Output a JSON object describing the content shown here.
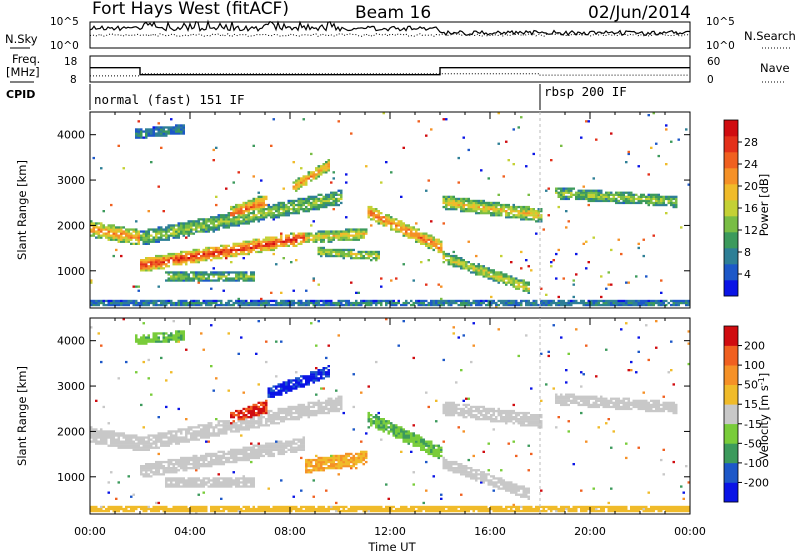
{
  "header": {
    "station": "Fort Hays West (fitACF)",
    "beam": "Beam 16",
    "date": "02/Jun/2014"
  },
  "noise_panel": {
    "left_label": "N.Sky",
    "right_label": "N.Search",
    "left_ticks": [
      "10^5",
      "10^0"
    ],
    "right_ticks": [
      "10^5",
      "10^0"
    ]
  },
  "freq_panel": {
    "left_label_1": "Freq.",
    "left_label_2": "[MHz]",
    "right_label": "Nave",
    "left_ticks": [
      "18",
      "8"
    ],
    "right_ticks": [
      "60",
      "0"
    ],
    "freq_steps": [
      {
        "t0": 0,
        "t1": 2.0,
        "value": 13.5
      },
      {
        "t0": 2.0,
        "t1": 14.0,
        "value": 10.8
      },
      {
        "t0": 14.0,
        "t1": 24.0,
        "value": 13.5
      }
    ],
    "nave_steps": [
      {
        "t0": 0,
        "t1": 2.0,
        "value": 14
      },
      {
        "t0": 2.0,
        "t1": 14.0,
        "value": 19
      },
      {
        "t0": 14.0,
        "t1": 18.0,
        "value": 19
      },
      {
        "t0": 18.0,
        "t1": 24.0,
        "value": 16
      }
    ]
  },
  "cpid": {
    "label": "CPID",
    "modes": [
      {
        "text": "normal (fast) 151 IF",
        "t_start": 0
      },
      {
        "text": "rbsp 200 IF",
        "t_start": 18.0
      }
    ]
  },
  "chart_data": [
    {
      "type": "heatmap",
      "title": "",
      "ylabel": "Slant Range [km]",
      "ylim": [
        180,
        4500
      ],
      "xlim": [
        0,
        24
      ],
      "yticks": [
        "1000",
        "2000",
        "3000",
        "4000"
      ],
      "colorbar": {
        "label": "Power [dB]",
        "ticks": [
          "4",
          "8",
          "12",
          "16",
          "20",
          "24",
          "28"
        ],
        "colors": [
          "#0a14e6",
          "#1d58c8",
          "#2e7f96",
          "#3c9a5c",
          "#79bd45",
          "#c4d135",
          "#f0bb2a",
          "#f59127",
          "#f06020",
          "#e3301a",
          "#d00c10"
        ]
      },
      "bands": [
        {
          "t0": 0.0,
          "t1": 2.0,
          "r0": 1900,
          "r1": 1700,
          "w": 350,
          "p": 0.75
        },
        {
          "t0": 2.0,
          "t1": 8.5,
          "r0": 1100,
          "r1": 1700,
          "w": 300,
          "p": 0.95
        },
        {
          "t0": 8.5,
          "t1": 11.0,
          "r0": 1700,
          "r1": 1800,
          "w": 250,
          "p": 0.6
        },
        {
          "t0": 2.0,
          "t1": 10.0,
          "r0": 1700,
          "r1": 2600,
          "w": 320,
          "p": 0.45
        },
        {
          "t0": 5.5,
          "t1": 7.0,
          "r0": 2200,
          "r1": 2500,
          "w": 350,
          "p": 0.8
        },
        {
          "t0": 8.0,
          "t1": 9.5,
          "r0": 2800,
          "r1": 3300,
          "w": 250,
          "p": 0.75
        },
        {
          "t0": 11.0,
          "t1": 14.0,
          "r0": 2300,
          "r1": 1500,
          "w": 300,
          "p": 0.8
        },
        {
          "t0": 14.0,
          "t1": 17.5,
          "r0": 1300,
          "r1": 600,
          "w": 250,
          "p": 0.55
        },
        {
          "t0": 14.0,
          "t1": 18.0,
          "r0": 2500,
          "r1": 2200,
          "w": 300,
          "p": 0.6
        },
        {
          "t0": 18.5,
          "t1": 23.5,
          "r0": 2700,
          "r1": 2500,
          "w": 250,
          "p": 0.45
        },
        {
          "t0": 9.0,
          "t1": 11.5,
          "r0": 1400,
          "r1": 1300,
          "w": 200,
          "p": 0.5
        },
        {
          "t0": 3.0,
          "t1": 6.5,
          "r0": 850,
          "r1": 850,
          "w": 200,
          "p": 0.45
        },
        {
          "t0": 1.8,
          "t1": 3.8,
          "r0": 4000,
          "r1": 4100,
          "w": 220,
          "p": 0.25
        },
        {
          "t0": 0.0,
          "t1": 24.0,
          "r0": 260,
          "r1": 260,
          "w": 120,
          "p": 0.25
        }
      ]
    },
    {
      "type": "heatmap",
      "title": "",
      "ylabel": "Slant Range [km]",
      "ylim": [
        180,
        4500
      ],
      "xlim": [
        0,
        24
      ],
      "yticks": [
        "1000",
        "2000",
        "3000",
        "4000"
      ],
      "colorbar": {
        "label": "Velocity [m s^-1]",
        "ticks": [
          "200",
          "100",
          "50",
          "15",
          "-15",
          "-50",
          "-100",
          "-200"
        ],
        "colors": [
          "#0a14e6",
          "#1d58c8",
          "#3c9a5c",
          "#79cc3a",
          "#c8c8c8",
          "#f0bb2a",
          "#f59127",
          "#f06020",
          "#d00c10"
        ]
      },
      "bands": [
        {
          "t0": 0.0,
          "t1": 2.0,
          "r0": 1900,
          "r1": 1700,
          "w": 350,
          "v": 0.5
        },
        {
          "t0": 2.0,
          "t1": 8.5,
          "r0": 1100,
          "r1": 1700,
          "w": 300,
          "v": 0.5
        },
        {
          "t0": 2.0,
          "t1": 10.0,
          "r0": 1700,
          "r1": 2600,
          "w": 320,
          "v": 0.5
        },
        {
          "t0": 5.5,
          "t1": 7.0,
          "r0": 2200,
          "r1": 2500,
          "w": 350,
          "v": 0.95
        },
        {
          "t0": 7.0,
          "t1": 9.5,
          "r0": 2800,
          "r1": 3300,
          "w": 260,
          "v": 0.05
        },
        {
          "t0": 8.5,
          "t1": 11.0,
          "r0": 1200,
          "r1": 1400,
          "w": 300,
          "v": 0.68
        },
        {
          "t0": 11.0,
          "t1": 14.0,
          "r0": 2300,
          "r1": 1500,
          "w": 300,
          "v": 0.33
        },
        {
          "t0": 14.0,
          "t1": 17.5,
          "r0": 1300,
          "r1": 600,
          "w": 250,
          "v": 0.5
        },
        {
          "t0": 14.0,
          "t1": 18.0,
          "r0": 2500,
          "r1": 2200,
          "w": 300,
          "v": 0.5
        },
        {
          "t0": 18.5,
          "t1": 23.5,
          "r0": 2700,
          "r1": 2500,
          "w": 250,
          "v": 0.5
        },
        {
          "t0": 3.0,
          "t1": 6.5,
          "r0": 850,
          "r1": 850,
          "w": 200,
          "v": 0.5
        },
        {
          "t0": 1.8,
          "t1": 3.8,
          "r0": 4000,
          "r1": 4100,
          "w": 220,
          "v": 0.33
        },
        {
          "t0": 0.0,
          "t1": 24.0,
          "r0": 260,
          "r1": 260,
          "w": 120,
          "v": 0.62
        }
      ]
    }
  ],
  "x_axis": {
    "label": "Time UT",
    "ticks": [
      "00:00",
      "04:00",
      "08:00",
      "12:00",
      "16:00",
      "20:00",
      "00:00"
    ]
  }
}
